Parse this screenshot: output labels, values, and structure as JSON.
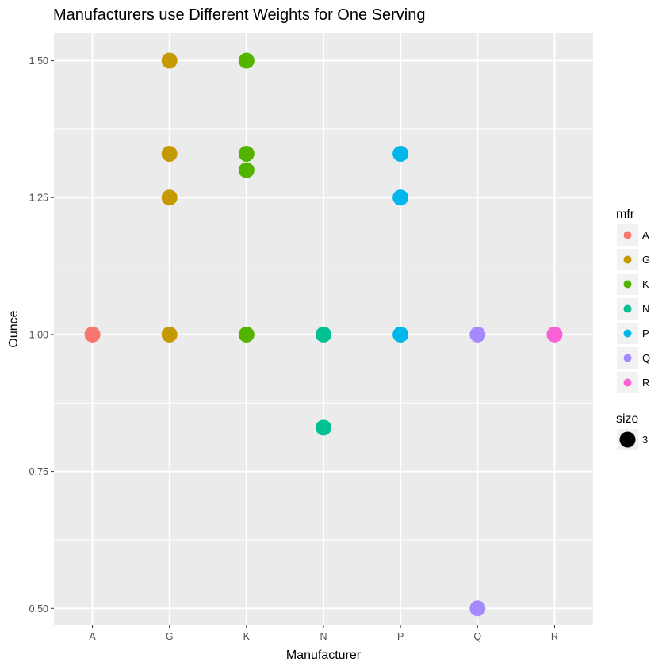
{
  "chart_data": {
    "type": "scatter",
    "title": "Manufacturers use Different Weights for One Serving",
    "xlabel": "Manufacturer",
    "ylabel": "Ounce",
    "categories": [
      "A",
      "G",
      "K",
      "N",
      "P",
      "Q",
      "R"
    ],
    "y_ticks": [
      "0.50",
      "0.75",
      "1.00",
      "1.25",
      "1.50"
    ],
    "y_tick_values": [
      0.5,
      0.75,
      1.0,
      1.25,
      1.5
    ],
    "ylim": [
      0.47,
      1.55
    ],
    "grid": true,
    "legend_position": "right",
    "series": [
      {
        "name": "A",
        "color": "#F8766D",
        "points": [
          {
            "x": "A",
            "y": 1.0
          }
        ]
      },
      {
        "name": "G",
        "color": "#C49A00",
        "points": [
          {
            "x": "G",
            "y": 1.5
          },
          {
            "x": "G",
            "y": 1.33
          },
          {
            "x": "G",
            "y": 1.25
          },
          {
            "x": "G",
            "y": 1.0
          }
        ]
      },
      {
        "name": "K",
        "color": "#53B400",
        "points": [
          {
            "x": "K",
            "y": 1.5
          },
          {
            "x": "K",
            "y": 1.33
          },
          {
            "x": "K",
            "y": 1.3
          },
          {
            "x": "K",
            "y": 1.0
          }
        ]
      },
      {
        "name": "N",
        "color": "#00C094",
        "points": [
          {
            "x": "N",
            "y": 1.0
          },
          {
            "x": "N",
            "y": 0.83
          }
        ]
      },
      {
        "name": "P",
        "color": "#00B6EB",
        "points": [
          {
            "x": "P",
            "y": 1.33
          },
          {
            "x": "P",
            "y": 1.25
          },
          {
            "x": "P",
            "y": 1.0
          }
        ]
      },
      {
        "name": "Q",
        "color": "#A58AFF",
        "points": [
          {
            "x": "Q",
            "y": 1.0
          },
          {
            "x": "Q",
            "y": 0.5
          }
        ]
      },
      {
        "name": "R",
        "color": "#FB61D7",
        "points": [
          {
            "x": "R",
            "y": 1.0
          }
        ]
      }
    ],
    "legend_color": {
      "title": "mfr",
      "entries": [
        "A",
        "G",
        "K",
        "N",
        "P",
        "Q",
        "R"
      ]
    },
    "legend_size": {
      "title": "size",
      "entries": [
        "3"
      ]
    },
    "panel_color": "#EBEBEB",
    "grid_color": "#FFFFFF"
  }
}
